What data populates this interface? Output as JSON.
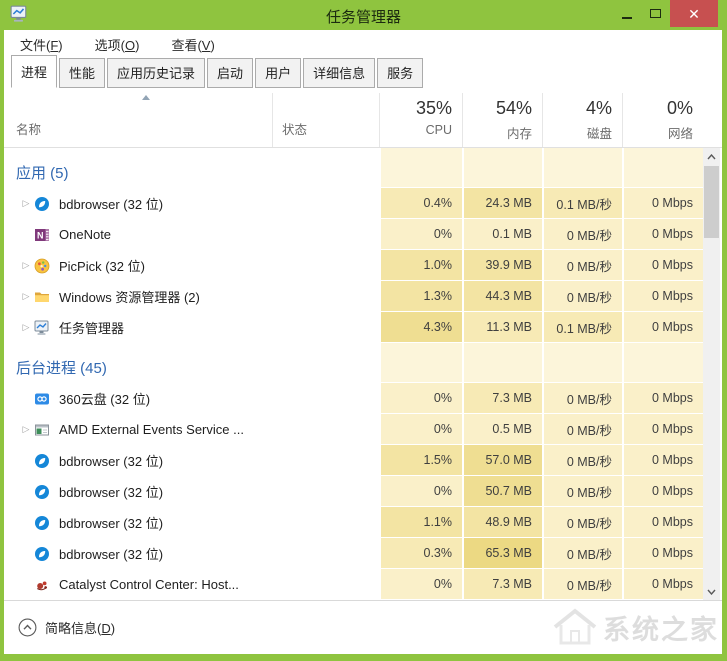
{
  "window": {
    "title": "任务管理器",
    "accent_color": "#8FC43F",
    "close_button_color": "#C75050"
  },
  "menu": {
    "items": [
      {
        "name": "file",
        "pre": "文件(",
        "key": "F",
        "post": ")"
      },
      {
        "name": "options",
        "pre": "选项(",
        "key": "O",
        "post": ")"
      },
      {
        "name": "view",
        "pre": "查看(",
        "key": "V",
        "post": ")"
      }
    ]
  },
  "tabs": {
    "items": [
      {
        "name": "processes",
        "label": "进程",
        "active": true
      },
      {
        "name": "performance",
        "label": "性能",
        "active": false
      },
      {
        "name": "app-history",
        "label": "应用历史记录",
        "active": false
      },
      {
        "name": "startup",
        "label": "启动",
        "active": false
      },
      {
        "name": "users",
        "label": "用户",
        "active": false
      },
      {
        "name": "details",
        "label": "详细信息",
        "active": false
      },
      {
        "name": "services",
        "label": "服务",
        "active": false
      }
    ]
  },
  "table": {
    "columns": [
      {
        "name": "name",
        "label": "名称",
        "total": ""
      },
      {
        "name": "status",
        "label": "状态",
        "total": ""
      },
      {
        "name": "cpu",
        "label": "CPU",
        "total": "35%"
      },
      {
        "name": "memory",
        "label": "内存",
        "total": "54%"
      },
      {
        "name": "disk",
        "label": "磁盘",
        "total": "4%"
      },
      {
        "name": "network",
        "label": "网络",
        "total": "0%"
      }
    ],
    "expander_glyph": "▷",
    "heat_palette": [
      "#FCF5DA",
      "#FAF0C9",
      "#F7EAB5",
      "#F3E4A3",
      "#EFDE92",
      "#ECD983"
    ],
    "rows": [
      {
        "type": "section",
        "label": "应用 (5)"
      },
      {
        "type": "process",
        "icon": "bdbrowser",
        "expand": true,
        "name": "bdbrowser (32 位)",
        "status": "",
        "cpu": "0.4%",
        "memory": "24.3 MB",
        "disk": "0.1 MB/秒",
        "network": "0 Mbps",
        "heat": {
          "cpu": 2,
          "memory": 3,
          "disk": 2,
          "network": 1
        }
      },
      {
        "type": "process",
        "icon": "onenote",
        "expand": false,
        "name": "OneNote",
        "status": "",
        "cpu": "0%",
        "memory": "0.1 MB",
        "disk": "0 MB/秒",
        "network": "0 Mbps",
        "heat": {
          "cpu": 1,
          "memory": 1,
          "disk": 1,
          "network": 1
        }
      },
      {
        "type": "process",
        "icon": "picpick",
        "expand": true,
        "name": "PicPick (32 位)",
        "status": "",
        "cpu": "1.0%",
        "memory": "39.9 MB",
        "disk": "0 MB/秒",
        "network": "0 Mbps",
        "heat": {
          "cpu": 3,
          "memory": 3,
          "disk": 1,
          "network": 1
        }
      },
      {
        "type": "process",
        "icon": "folder",
        "expand": true,
        "name": "Windows 资源管理器 (2)",
        "status": "",
        "cpu": "1.3%",
        "memory": "44.3 MB",
        "disk": "0 MB/秒",
        "network": "0 Mbps",
        "heat": {
          "cpu": 3,
          "memory": 3,
          "disk": 1,
          "network": 1
        }
      },
      {
        "type": "process",
        "icon": "taskmgr",
        "expand": true,
        "name": "任务管理器",
        "status": "",
        "cpu": "4.3%",
        "memory": "11.3 MB",
        "disk": "0.1 MB/秒",
        "network": "0 Mbps",
        "heat": {
          "cpu": 4,
          "memory": 2,
          "disk": 2,
          "network": 1
        }
      },
      {
        "type": "section",
        "label": "后台进程 (45)"
      },
      {
        "type": "process",
        "icon": "cloud360",
        "expand": false,
        "name": "360云盘 (32 位)",
        "status": "",
        "cpu": "0%",
        "memory": "7.3 MB",
        "disk": "0 MB/秒",
        "network": "0 Mbps",
        "heat": {
          "cpu": 1,
          "memory": 2,
          "disk": 1,
          "network": 1
        }
      },
      {
        "type": "process",
        "icon": "appwindow",
        "expand": true,
        "name": "AMD External Events Service ...",
        "status": "",
        "cpu": "0%",
        "memory": "0.5 MB",
        "disk": "0 MB/秒",
        "network": "0 Mbps",
        "heat": {
          "cpu": 1,
          "memory": 1,
          "disk": 1,
          "network": 1
        }
      },
      {
        "type": "process",
        "icon": "bdbrowser",
        "expand": false,
        "name": "bdbrowser (32 位)",
        "status": "",
        "cpu": "1.5%",
        "memory": "57.0 MB",
        "disk": "0 MB/秒",
        "network": "0 Mbps",
        "heat": {
          "cpu": 3,
          "memory": 4,
          "disk": 1,
          "network": 1
        }
      },
      {
        "type": "process",
        "icon": "bdbrowser",
        "expand": false,
        "name": "bdbrowser (32 位)",
        "status": "",
        "cpu": "0%",
        "memory": "50.7 MB",
        "disk": "0 MB/秒",
        "network": "0 Mbps",
        "heat": {
          "cpu": 1,
          "memory": 4,
          "disk": 1,
          "network": 1
        }
      },
      {
        "type": "process",
        "icon": "bdbrowser",
        "expand": false,
        "name": "bdbrowser (32 位)",
        "status": "",
        "cpu": "1.1%",
        "memory": "48.9 MB",
        "disk": "0 MB/秒",
        "network": "0 Mbps",
        "heat": {
          "cpu": 3,
          "memory": 3,
          "disk": 1,
          "network": 1
        }
      },
      {
        "type": "process",
        "icon": "bdbrowser",
        "expand": false,
        "name": "bdbrowser (32 位)",
        "status": "",
        "cpu": "0.3%",
        "memory": "65.3 MB",
        "disk": "0 MB/秒",
        "network": "0 Mbps",
        "heat": {
          "cpu": 2,
          "memory": 5,
          "disk": 1,
          "network": 1
        }
      },
      {
        "type": "process",
        "icon": "catalyst",
        "expand": false,
        "name": "Catalyst Control Center: Host...",
        "status": "",
        "cpu": "0%",
        "memory": "7.3 MB",
        "disk": "0 MB/秒",
        "network": "0 Mbps",
        "heat": {
          "cpu": 1,
          "memory": 2,
          "disk": 1,
          "network": 1
        }
      }
    ]
  },
  "footer": {
    "toggle": {
      "pre": "简略信息(",
      "key": "D",
      "post": ")"
    }
  },
  "watermark": {
    "text": "系统之家"
  }
}
